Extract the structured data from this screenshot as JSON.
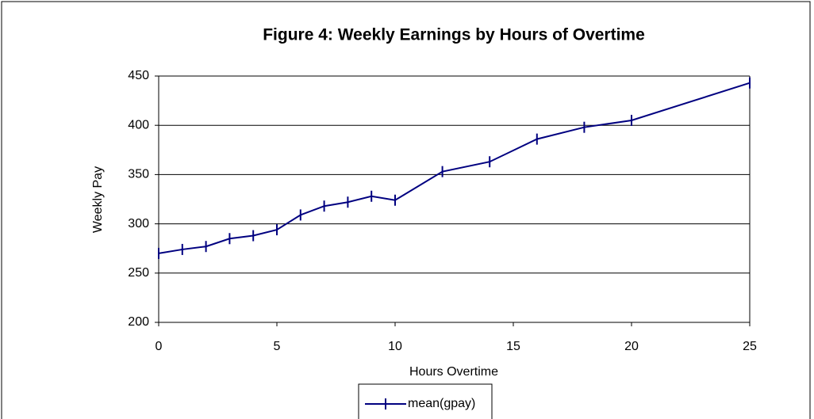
{
  "chart_data": {
    "type": "line",
    "title": "Figure 4: Weekly Earnings by Hours of Overtime",
    "x_label": "Hours Overtime",
    "y_label": "Weekly Pay",
    "x": [
      0,
      1,
      2,
      3,
      4,
      5,
      6,
      7,
      8,
      9,
      10,
      12,
      14,
      16,
      18,
      20,
      25
    ],
    "series": [
      {
        "name": "mean(gpay)",
        "color": "#000080",
        "values": [
          270,
          274,
          277,
          285,
          288,
          294,
          309,
          318,
          322,
          328,
          324,
          353,
          363,
          386,
          398,
          405,
          443
        ]
      }
    ],
    "xlim": [
      0,
      25
    ],
    "xticks": [
      0,
      5,
      10,
      15,
      20,
      25
    ],
    "ylim": [
      200,
      450
    ],
    "yticks": [
      200,
      250,
      300,
      350,
      400,
      450
    ],
    "grid": true,
    "legend": "bottom"
  }
}
